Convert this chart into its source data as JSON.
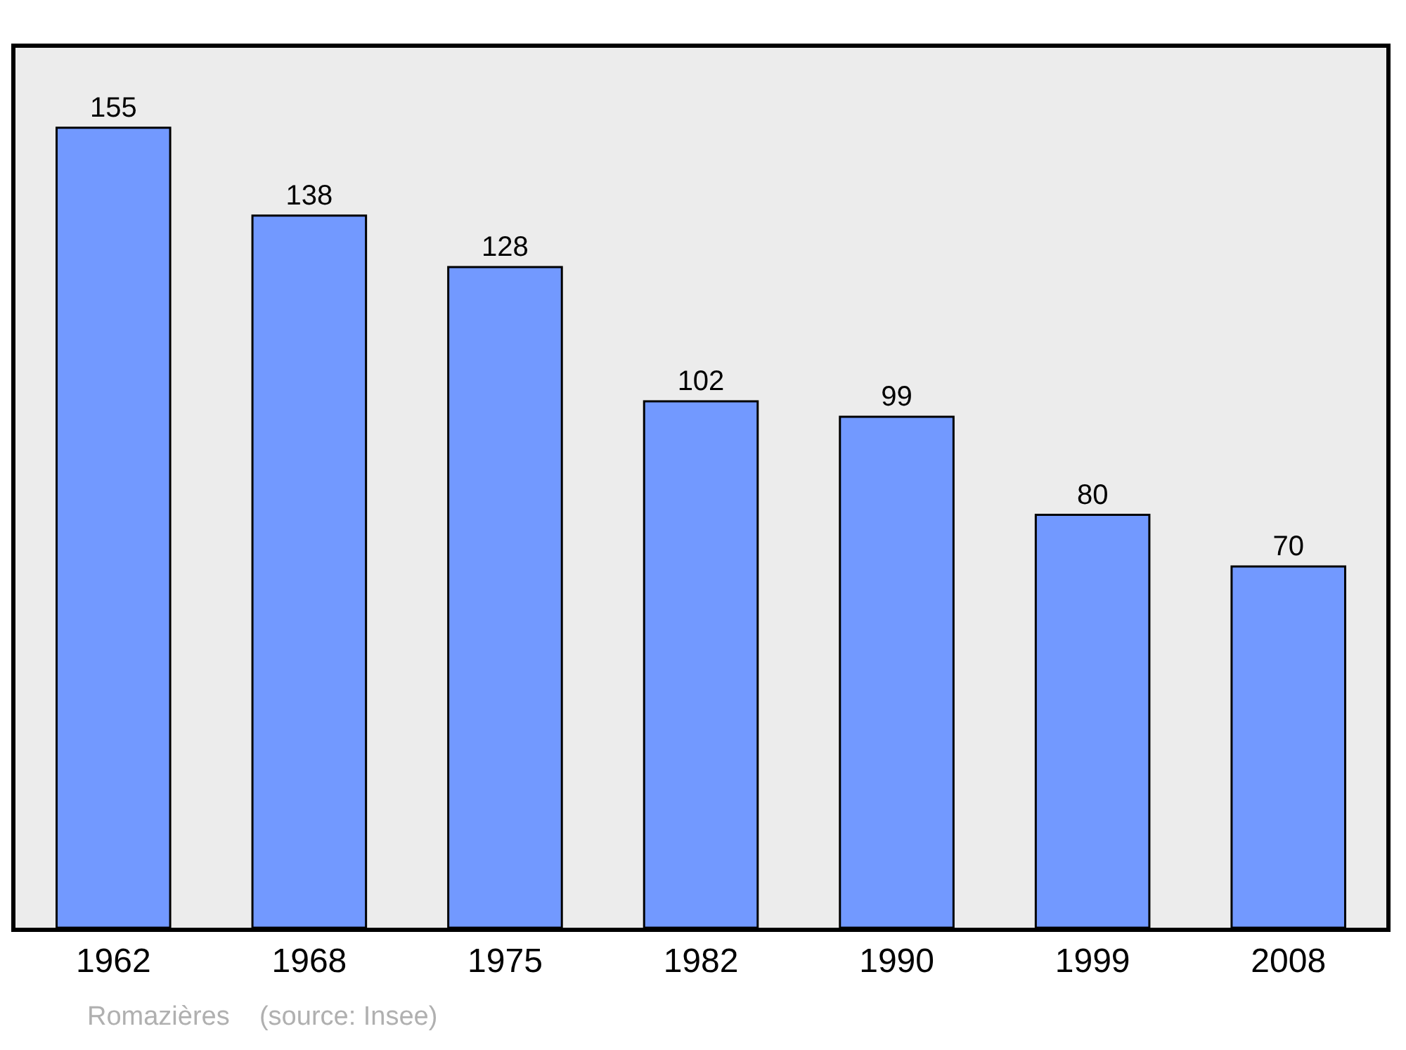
{
  "chart_data": {
    "type": "bar",
    "categories": [
      "1962",
      "1968",
      "1975",
      "1982",
      "1990",
      "1999",
      "2008"
    ],
    "values": [
      155,
      138,
      128,
      102,
      99,
      80,
      70
    ],
    "color": "#7299ff",
    "data_labels": true,
    "tick_labels": "x",
    "grid": false,
    "legend": false,
    "annotations": [
      "Romazières    (source: Insee)"
    ]
  }
}
